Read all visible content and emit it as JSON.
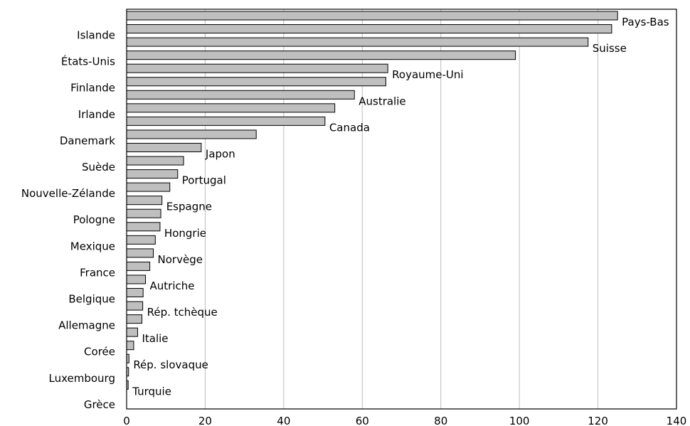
{
  "chart_data": {
    "type": "bar",
    "orientation": "horizontal",
    "categories": [
      "Pays-Bas",
      "Islande",
      "Suisse",
      "États-Unis",
      "Royaume-Uni",
      "Finlande",
      "Australie",
      "Irlande",
      "Canada",
      "Danemark",
      "Japon",
      "Suède",
      "Portugal",
      "Nouvelle-Zélande",
      "Espagne",
      "Pologne",
      "Hongrie",
      "Mexique",
      "Norvège",
      "France",
      "Autriche",
      "Belgique",
      "Rép. tchèque",
      "Allemagne",
      "Italie",
      "Corée",
      "Rép. slovaque",
      "Luxembourg",
      "Turquie",
      "Grèce"
    ],
    "label_side": [
      "right",
      "left",
      "right",
      "left",
      "right",
      "left",
      "right",
      "left",
      "right",
      "left",
      "right",
      "left",
      "right",
      "left",
      "right",
      "left",
      "right",
      "left",
      "right",
      "left",
      "right",
      "left",
      "right",
      "left",
      "right",
      "left",
      "right",
      "left",
      "right",
      "left"
    ],
    "values": [
      125,
      123.5,
      117.5,
      99,
      66.5,
      66,
      58,
      53,
      50.5,
      33,
      19,
      14.5,
      13,
      11,
      9,
      8.7,
      8.5,
      7.3,
      6.8,
      5.9,
      4.8,
      4.2,
      4.1,
      3.9,
      2.8,
      1.8,
      0.6,
      0.5,
      0.4,
      0
    ],
    "xlim": [
      0,
      140
    ],
    "xticks": [
      0,
      20,
      40,
      60,
      80,
      100,
      120,
      140
    ],
    "grid": "vertical",
    "title": "",
    "xlabel": "",
    "ylabel": "",
    "bar_color": "#bfbfbf"
  }
}
